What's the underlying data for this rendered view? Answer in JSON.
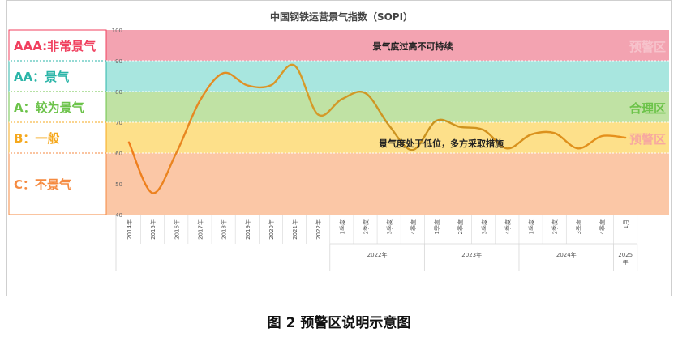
{
  "caption": "图 2 预警区说明示意图",
  "chart_data": {
    "type": "line",
    "title": "中国钢铁运营景气指数（SOPI）",
    "ylim": [
      40,
      100
    ],
    "yticks": [
      40,
      50,
      60,
      70,
      80,
      90,
      100
    ],
    "zones": [
      {
        "label": "AAA:非常景气",
        "from": 90,
        "to": 100,
        "fill": "#f3a3b1",
        "label_color": "#f0405f",
        "side_label": "预警区",
        "side_color": "#f7c3cc"
      },
      {
        "label": "AA：景气",
        "from": 80,
        "to": 90,
        "fill": "#a8e6df",
        "label_color": "#2bb5a8",
        "side_label": "",
        "side_color": ""
      },
      {
        "label": "A：较为景气",
        "from": 70,
        "to": 80,
        "fill": "#c0e2a4",
        "label_color": "#6cc34a",
        "side_label": "合理区",
        "side_color": "#6cc34a"
      },
      {
        "label": "B：一般",
        "from": 60,
        "to": 70,
        "fill": "#fde08a",
        "label_color": "#f5a81d",
        "side_label": "预警区",
        "side_color": "#f7a8a0"
      },
      {
        "label": "C：不景气",
        "from": 40,
        "to": 60,
        "fill": "#fbc7a6",
        "label_color": "#f58a40",
        "side_label": "",
        "side_color": ""
      }
    ],
    "annotations": [
      "景气度过高不可持续",
      "景气度处于低位，多方采取措施"
    ],
    "categories": [
      "2014年",
      "2015年",
      "2016年",
      "2017年",
      "2018年",
      "2019年",
      "2020年",
      "2021年",
      "2022年",
      "1季度",
      "2季度",
      "3季度",
      "4季度",
      "1季度",
      "2季度",
      "3季度",
      "4季度",
      "1季度",
      "2季度",
      "3季度",
      "4季度",
      "1月"
    ],
    "groups": [
      {
        "label": "2022年",
        "start": 9,
        "end": 12
      },
      {
        "label": "2023年",
        "start": 13,
        "end": 16
      },
      {
        "label": "2024年",
        "start": 17,
        "end": 20
      },
      {
        "label": "2025年",
        "start": 21,
        "end": 21
      }
    ],
    "series": [
      {
        "values": [
          63.5,
          47,
          60,
          77,
          86,
          82,
          82,
          88.5,
          72.5,
          77.5,
          79.5,
          69,
          61,
          70.5,
          68.5,
          67.5,
          61.5,
          66,
          66.5,
          61.5,
          65.5,
          65
        ]
      }
    ]
  }
}
